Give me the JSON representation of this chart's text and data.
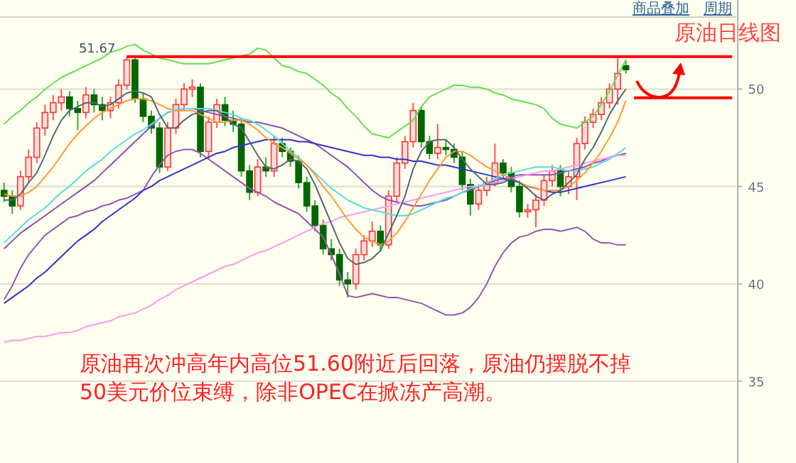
{
  "chart_data": {
    "type": "candlestick",
    "title": "原油日线图",
    "annotations": [
      {
        "text": "51.67",
        "y": 51.67
      },
      "原油再次冲高年内高位51.60附近后回落，原油仍摆脱不掉50美元价位束缚，除非OPEC在掀冻产高潮。",
      "商品叠加",
      "周期"
    ],
    "categories": [
      null,
      null,
      null,
      null,
      null,
      null,
      null,
      null,
      null,
      null,
      null,
      null,
      null,
      null,
      null,
      null,
      null,
      null,
      null,
      null,
      null,
      null,
      null,
      null,
      null,
      null,
      null,
      null,
      null,
      null,
      null,
      null,
      null,
      null,
      null,
      null,
      null,
      null,
      null,
      null,
      null,
      null,
      null,
      null,
      null,
      null,
      null,
      null,
      null,
      null,
      null,
      null,
      null,
      null,
      null,
      null,
      null,
      null,
      null,
      null,
      null,
      null,
      null,
      null,
      null,
      null,
      null,
      null,
      null,
      null,
      null,
      null,
      null,
      null,
      null,
      null,
      null,
      null,
      null,
      null,
      null,
      null,
      null,
      null,
      null,
      null,
      null,
      null,
      null,
      null
    ],
    "ohlc": [
      [
        44.8,
        45.2,
        44.2,
        44.5
      ],
      [
        44.5,
        44.8,
        43.6,
        44.0
      ],
      [
        44.0,
        45.8,
        43.8,
        45.5
      ],
      [
        45.5,
        46.9,
        45.2,
        46.5
      ],
      [
        46.5,
        48.3,
        46.2,
        48.0
      ],
      [
        48.0,
        49.2,
        47.6,
        48.8
      ],
      [
        48.8,
        49.7,
        48.4,
        49.3
      ],
      [
        49.3,
        50.0,
        48.9,
        49.6
      ],
      [
        49.6,
        49.9,
        48.6,
        49.0
      ],
      [
        49.0,
        49.4,
        47.9,
        48.8
      ],
      [
        48.8,
        50.1,
        48.5,
        49.7
      ],
      [
        49.7,
        50.0,
        48.8,
        49.2
      ],
      [
        49.2,
        49.6,
        48.4,
        48.9
      ],
      [
        48.9,
        49.6,
        48.5,
        49.3
      ],
      [
        49.3,
        50.5,
        49.0,
        50.2
      ],
      [
        50.2,
        51.67,
        50.0,
        51.5
      ],
      [
        51.5,
        51.6,
        49.3,
        49.5
      ],
      [
        49.5,
        49.8,
        48.3,
        48.6
      ],
      [
        48.6,
        48.9,
        47.7,
        48.0
      ],
      [
        48.0,
        48.3,
        45.7,
        46.0
      ],
      [
        46.0,
        48.3,
        45.8,
        48.0
      ],
      [
        48.0,
        49.5,
        47.7,
        49.2
      ],
      [
        49.2,
        50.3,
        48.9,
        50.0
      ],
      [
        50.0,
        50.5,
        49.6,
        50.1
      ],
      [
        50.1,
        50.3,
        46.5,
        46.8
      ],
      [
        46.8,
        48.6,
        46.4,
        48.3
      ],
      [
        48.3,
        49.5,
        48.0,
        49.2
      ],
      [
        49.2,
        49.6,
        48.1,
        48.4
      ],
      [
        48.4,
        48.9,
        47.8,
        48.2
      ],
      [
        48.2,
        48.5,
        45.5,
        45.8
      ],
      [
        45.8,
        46.1,
        44.3,
        44.7
      ],
      [
        44.7,
        46.4,
        44.5,
        46.0
      ],
      [
        46.0,
        46.5,
        45.5,
        45.8
      ],
      [
        45.8,
        47.6,
        45.5,
        47.2
      ],
      [
        47.2,
        47.5,
        46.5,
        46.8
      ],
      [
        46.8,
        47.0,
        46.0,
        46.3
      ],
      [
        46.3,
        46.6,
        44.9,
        45.2
      ],
      [
        45.2,
        45.5,
        43.7,
        44.0
      ],
      [
        44.0,
        44.3,
        42.7,
        43.0
      ],
      [
        43.0,
        43.3,
        41.5,
        41.8
      ],
      [
        41.8,
        42.3,
        41.2,
        41.5
      ],
      [
        41.5,
        41.8,
        39.9,
        40.2
      ],
      [
        40.2,
        40.6,
        39.3,
        40.0
      ],
      [
        40.0,
        41.8,
        39.7,
        41.5
      ],
      [
        41.5,
        42.5,
        41.2,
        42.2
      ],
      [
        42.2,
        43.2,
        41.9,
        42.7
      ],
      [
        42.7,
        43.0,
        41.7,
        42.0
      ],
      [
        42.0,
        44.8,
        41.8,
        44.5
      ],
      [
        44.5,
        46.5,
        44.2,
        46.2
      ],
      [
        46.2,
        47.6,
        45.9,
        47.3
      ],
      [
        47.3,
        49.3,
        47.0,
        48.9
      ],
      [
        48.9,
        49.1,
        47.0,
        47.3
      ],
      [
        47.3,
        47.6,
        46.4,
        46.7
      ],
      [
        46.7,
        48.2,
        46.4,
        47.0
      ],
      [
        47.0,
        47.4,
        46.6,
        46.9
      ],
      [
        46.9,
        47.2,
        46.2,
        46.5
      ],
      [
        46.5,
        46.8,
        44.8,
        45.1
      ],
      [
        45.1,
        45.4,
        43.5,
        44.1
      ],
      [
        44.1,
        45.1,
        43.8,
        44.8
      ],
      [
        44.8,
        45.5,
        44.5,
        45.2
      ],
      [
        45.2,
        47.2,
        45.0,
        46.2
      ],
      [
        46.2,
        46.4,
        45.4,
        45.7
      ],
      [
        45.7,
        46.0,
        44.7,
        45.0
      ],
      [
        45.0,
        45.3,
        43.4,
        43.7
      ],
      [
        43.7,
        44.1,
        43.4,
        43.8
      ],
      [
        43.8,
        44.6,
        42.9,
        44.3
      ],
      [
        44.3,
        45.6,
        44.0,
        45.3
      ],
      [
        45.3,
        46.1,
        45.0,
        45.8
      ],
      [
        45.8,
        46.1,
        44.5,
        45.0
      ],
      [
        45.0,
        45.8,
        44.6,
        45.5
      ],
      [
        45.5,
        47.5,
        44.3,
        47.2
      ],
      [
        47.2,
        48.6,
        46.9,
        48.3
      ],
      [
        48.3,
        49.0,
        48.0,
        48.7
      ],
      [
        48.7,
        49.6,
        48.4,
        49.3
      ],
      [
        49.3,
        50.3,
        49.0,
        50.0
      ],
      [
        50.0,
        51.6,
        49.2,
        50.8
      ],
      [
        51.2,
        51.5,
        50.8,
        51.0
      ],
      null,
      null,
      null,
      null,
      null,
      null,
      null,
      null,
      null,
      null,
      null,
      null,
      null
    ],
    "series": [
      {
        "type": "line",
        "color": "#66dd55",
        "values": [
          48.2,
          48.6,
          48.9,
          49.3,
          49.6,
          50.0,
          50.3,
          50.6,
          50.8,
          51.0,
          51.2,
          51.4,
          51.6,
          51.9,
          52.0,
          52.2,
          52.3,
          52.0,
          51.8,
          51.6,
          51.5,
          51.4,
          51.3,
          51.3,
          51.3,
          51.3,
          51.4,
          51.5,
          51.6,
          51.7,
          51.8,
          52.1,
          52.0,
          51.6,
          51.2,
          51.1,
          50.9,
          50.8,
          50.5,
          50.2,
          49.8,
          49.5,
          49.0,
          48.6,
          48.1,
          47.7,
          47.6,
          47.5,
          47.8,
          48.1,
          48.4,
          49.1,
          49.6,
          49.8,
          50.0,
          50.2,
          50.2,
          50.1,
          50.1,
          50.0,
          49.8,
          49.7,
          49.5,
          49.4,
          49.3,
          49.2,
          49.0,
          48.5,
          48.2,
          48.1,
          48.0,
          48.3,
          48.6,
          49.2,
          49.9,
          50.7,
          51.5,
          null,
          null,
          null,
          null,
          null,
          null,
          null,
          null,
          null,
          null,
          null,
          null,
          null
        ]
      },
      {
        "type": "line",
        "color": "#9955aa",
        "values": [
          39.2,
          39.9,
          40.8,
          41.5,
          42.0,
          42.5,
          42.8,
          43.1,
          43.4,
          43.5,
          43.7,
          43.8,
          44.0,
          44.1,
          44.3,
          44.4,
          44.6,
          44.8,
          45.5,
          46.1,
          46.6,
          46.8,
          46.9,
          46.9,
          46.7,
          46.4,
          46.1,
          45.8,
          45.5,
          45.2,
          44.9,
          44.7,
          44.5,
          44.2,
          44.0,
          43.8,
          43.6,
          43.2,
          42.8,
          42.4,
          41.5,
          40.5,
          39.4,
          39.3,
          39.4,
          39.5,
          39.4,
          39.3,
          39.3,
          39.2,
          39.1,
          39.0,
          38.8,
          38.6,
          38.4,
          38.4,
          38.5,
          38.8,
          39.3,
          40.0,
          40.9,
          41.6,
          42.1,
          42.4,
          42.5,
          42.7,
          42.8,
          42.8,
          42.7,
          42.8,
          42.9,
          42.7,
          42.3,
          42.1,
          42.1,
          42.0,
          42.0,
          null,
          null,
          null,
          null,
          null,
          null,
          null,
          null,
          null,
          null,
          null,
          null,
          null
        ]
      },
      {
        "type": "line",
        "color": "#8a4fb0",
        "values": [
          41.8,
          42.2,
          42.6,
          42.9,
          43.2,
          43.5,
          43.8,
          44.1,
          44.4,
          44.7,
          45.0,
          45.3,
          45.7,
          46.1,
          46.5,
          46.9,
          47.3,
          47.7,
          48.1,
          48.5,
          48.8,
          48.9,
          49.0,
          49.0,
          48.9,
          48.8,
          48.7,
          48.6,
          48.5,
          48.4,
          48.3,
          48.3,
          48.2,
          48.1,
          48.0,
          47.8,
          47.6,
          47.4,
          47.2,
          46.9,
          46.6,
          46.3,
          46.0,
          45.6,
          45.2,
          44.8,
          44.5,
          44.3,
          44.2,
          44.1,
          44.0,
          44.0,
          44.1,
          44.2,
          44.3,
          44.5,
          44.7,
          44.8,
          45.0,
          45.1,
          45.3,
          45.4,
          45.5,
          45.6,
          45.6,
          45.6,
          45.6,
          45.6,
          45.7,
          45.8,
          45.9,
          46.0,
          46.2,
          46.3,
          46.5,
          46.6,
          46.7,
          null,
          null,
          null,
          null,
          null,
          null,
          null,
          null,
          null,
          null,
          null,
          null,
          null
        ]
      },
      {
        "type": "line",
        "color": "#ff99ee",
        "values": [
          37.0,
          37.1,
          37.1,
          37.2,
          37.3,
          37.3,
          37.4,
          37.5,
          37.5,
          37.6,
          37.8,
          37.9,
          38.0,
          38.1,
          38.3,
          38.4,
          38.5,
          38.7,
          38.9,
          39.2,
          39.4,
          39.7,
          39.9,
          40.1,
          40.3,
          40.5,
          40.7,
          40.9,
          41.0,
          41.2,
          41.4,
          41.6,
          41.7,
          41.9,
          42.1,
          42.3,
          42.5,
          42.7,
          42.9,
          43.1,
          43.2,
          43.4,
          43.5,
          43.6,
          43.7,
          43.8,
          43.9,
          44.0,
          44.1,
          44.2,
          44.3,
          44.4,
          44.5,
          44.6,
          44.7,
          44.8,
          44.9,
          45.0,
          45.0,
          45.1,
          45.2,
          45.3,
          45.4,
          45.5,
          45.6,
          45.7,
          45.8,
          45.8,
          45.9,
          46.0,
          46.1,
          46.2,
          46.3,
          46.4,
          46.5,
          46.6,
          46.6,
          null,
          null,
          null,
          null,
          null,
          null,
          null,
          null,
          null,
          null,
          null,
          null,
          null
        ]
      },
      {
        "type": "line",
        "color": "#3333cc",
        "values": [
          39.0,
          39.3,
          39.6,
          39.9,
          40.3,
          40.6,
          41.0,
          41.4,
          41.8,
          42.2,
          42.5,
          42.8,
          43.2,
          43.5,
          43.8,
          44.1,
          44.4,
          44.8,
          45.0,
          45.3,
          45.5,
          45.7,
          45.9,
          46.1,
          46.3,
          46.5,
          46.7,
          46.8,
          47.0,
          47.1,
          47.2,
          47.3,
          47.4,
          47.4,
          47.4,
          47.4,
          47.3,
          47.3,
          47.2,
          47.1,
          47.0,
          46.9,
          46.8,
          46.7,
          46.6,
          46.6,
          46.5,
          46.5,
          46.4,
          46.4,
          46.3,
          46.3,
          46.2,
          46.1,
          46.1,
          46.0,
          45.9,
          45.8,
          45.7,
          45.6,
          45.5,
          45.4,
          45.3,
          45.2,
          45.0,
          44.9,
          44.8,
          44.7,
          44.7,
          44.8,
          44.9,
          45.0,
          45.1,
          45.2,
          45.3,
          45.4,
          45.5,
          null,
          null,
          null,
          null,
          null,
          null,
          null,
          null,
          null,
          null,
          null,
          null,
          null
        ]
      },
      {
        "type": "line",
        "color": "#55dddd",
        "values": [
          42.1,
          42.5,
          42.9,
          43.3,
          43.6,
          43.9,
          44.3,
          44.7,
          45.0,
          45.4,
          45.8,
          46.1,
          46.4,
          46.8,
          47.1,
          47.4,
          47.7,
          47.9,
          48.2,
          48.5,
          48.8,
          48.9,
          49.0,
          49.0,
          49.0,
          49.0,
          48.9,
          48.8,
          48.7,
          48.5,
          48.4,
          48.2,
          47.9,
          47.6,
          47.2,
          46.8,
          46.5,
          46.1,
          45.7,
          45.3,
          44.9,
          44.6,
          44.3,
          44.1,
          43.9,
          43.8,
          43.7,
          43.6,
          43.5,
          43.5,
          43.6,
          43.8,
          44.0,
          44.2,
          44.4,
          44.5,
          44.7,
          44.9,
          45.0,
          45.2,
          45.4,
          45.6,
          45.7,
          45.8,
          45.9,
          46.0,
          46.0,
          46.0,
          45.9,
          45.8,
          45.8,
          45.9,
          46.0,
          46.2,
          46.4,
          46.7,
          47.0,
          null,
          null,
          null,
          null,
          null,
          null,
          null,
          null,
          null,
          null,
          null,
          null,
          null
        ]
      },
      {
        "type": "line",
        "color": "#ff9933",
        "values": [
          44.6,
          44.5,
          44.5,
          44.7,
          45.0,
          45.5,
          46.0,
          46.6,
          47.2,
          47.7,
          48.1,
          48.5,
          48.8,
          49.0,
          49.2,
          49.4,
          49.5,
          49.5,
          49.4,
          49.2,
          49.0,
          48.9,
          48.9,
          48.9,
          48.7,
          48.5,
          48.3,
          48.3,
          48.4,
          48.4,
          48.2,
          47.9,
          47.5,
          47.2,
          47.0,
          46.7,
          46.4,
          46.1,
          45.6,
          45.0,
          44.5,
          43.9,
          43.3,
          42.8,
          42.4,
          42.2,
          42.0,
          42.2,
          42.6,
          43.2,
          43.9,
          44.6,
          45.3,
          45.9,
          46.5,
          46.8,
          46.8,
          46.6,
          46.3,
          46.0,
          45.8,
          45.6,
          45.4,
          45.2,
          45.0,
          44.9,
          44.8,
          44.8,
          44.8,
          45.0,
          45.3,
          45.7,
          46.2,
          46.8,
          47.5,
          48.3,
          49.4,
          null,
          null,
          null,
          null,
          null,
          null,
          null,
          null,
          null,
          null,
          null,
          null,
          null
        ]
      },
      {
        "type": "line",
        "color": "#556677",
        "values": [
          44.3,
          44.3,
          44.6,
          45.2,
          45.7,
          46.6,
          47.6,
          48.4,
          48.9,
          49.1,
          49.3,
          49.3,
          49.1,
          49.2,
          49.5,
          49.8,
          49.9,
          49.8,
          49.6,
          48.7,
          48.0,
          48.0,
          48.4,
          48.7,
          48.8,
          48.9,
          48.9,
          48.6,
          48.2,
          48.0,
          47.3,
          46.6,
          46.0,
          45.9,
          46.1,
          46.4,
          46.3,
          45.9,
          45.1,
          44.1,
          43.1,
          42.1,
          41.3,
          41.0,
          41.1,
          41.3,
          41.7,
          42.6,
          43.5,
          44.5,
          45.9,
          46.8,
          47.3,
          47.4,
          47.4,
          47.0,
          46.4,
          45.9,
          45.5,
          45.1,
          45.1,
          45.2,
          45.4,
          45.2,
          44.9,
          44.5,
          44.3,
          44.6,
          44.8,
          45.2,
          45.6,
          46.4,
          47.0,
          47.8,
          48.7,
          49.4,
          50.0,
          null,
          null,
          null,
          null,
          null,
          null,
          null,
          null,
          null,
          null,
          null,
          null,
          null
        ]
      },
      {
        "type": "line",
        "color": "#ff0000",
        "values": [
          null,
          null,
          null,
          null,
          null,
          null,
          null,
          null,
          null,
          null,
          null,
          null,
          null,
          null,
          null,
          51.67,
          51.67,
          51.67,
          51.67,
          51.67,
          51.67,
          51.67,
          51.67,
          51.67,
          51.67,
          51.67,
          51.67,
          51.67,
          51.67,
          51.67,
          51.67,
          51.67,
          51.67,
          51.67,
          51.67,
          51.67,
          51.67,
          51.67,
          51.67,
          51.67,
          51.67,
          51.67,
          51.67,
          51.67,
          51.67,
          51.67,
          51.67,
          51.67,
          51.67,
          51.67,
          51.67,
          51.67,
          51.67,
          51.67,
          51.67,
          51.67,
          51.67,
          51.67,
          51.67,
          51.67,
          51.67,
          51.67,
          51.67,
          51.67,
          51.67,
          51.67,
          51.67,
          51.67,
          51.67,
          51.67,
          51.67,
          51.67,
          51.67,
          51.67,
          51.67,
          51.67,
          51.67,
          51.67,
          51.67,
          51.67,
          51.67,
          51.67,
          51.67,
          51.67,
          51.67,
          51.67,
          51.67,
          51.67,
          51.67,
          51.67
        ]
      },
      {
        "type": "line",
        "color": "#ff0000",
        "values": [
          null,
          null,
          null,
          null,
          null,
          null,
          null,
          null,
          null,
          null,
          null,
          null,
          null,
          null,
          null,
          null,
          null,
          null,
          null,
          null,
          null,
          null,
          null,
          null,
          null,
          null,
          null,
          null,
          null,
          null,
          null,
          null,
          null,
          null,
          null,
          null,
          null,
          null,
          null,
          null,
          null,
          null,
          null,
          null,
          null,
          null,
          null,
          null,
          null,
          null,
          null,
          null,
          null,
          null,
          null,
          null,
          null,
          null,
          null,
          null,
          null,
          null,
          null,
          null,
          null,
          null,
          null,
          null,
          null,
          null,
          null,
          null,
          null,
          null,
          null,
          null,
          null,
          49.55,
          49.55,
          49.55,
          49.55,
          49.55,
          49.55,
          49.55,
          49.55,
          49.55,
          49.55,
          49.55,
          49.55,
          49.55
        ]
      }
    ],
    "ylim": [
      30.8,
      53.7
    ],
    "yticks": [
      35,
      40,
      45,
      50
    ],
    "grid": "y",
    "tick_labels": "y"
  }
}
